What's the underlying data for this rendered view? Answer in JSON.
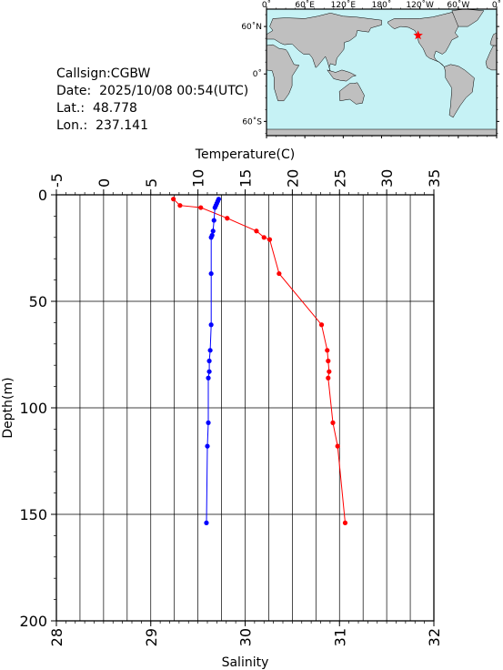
{
  "info": {
    "callsign_label": "Callsign:",
    "callsign": "CGBW",
    "date_label": "Date:",
    "date": "2025/10/08 00:54(UTC)",
    "lat_label": "Lat.:",
    "lat": "48.778",
    "lon_label": "Lon.:",
    "lon": "237.141"
  },
  "map": {
    "lon_ticks": [
      "0˚",
      "60˚E",
      "120˚E",
      "180˚",
      "120˚W",
      "60˚W",
      "0˚"
    ],
    "lat_ticks": [
      "60˚N",
      "0˚",
      "60˚S"
    ],
    "station_lon": 237.141,
    "station_lat": 48.778,
    "colors": {
      "ocean": "#c6f2f5",
      "land": "#bfbfbf",
      "marker": "#ff0000"
    }
  },
  "chart_data": {
    "type": "line",
    "title": "",
    "temperature_axis": {
      "label": "Temperature(C)",
      "range": [
        -5,
        35
      ],
      "ticks": [
        "-5",
        "0",
        "5",
        "10",
        "15",
        "20",
        "25",
        "30",
        "35"
      ]
    },
    "salinity_axis": {
      "label": "Salinity",
      "range": [
        28,
        32
      ],
      "ticks": [
        "28",
        "29",
        "30",
        "31",
        "32"
      ]
    },
    "depth_axis": {
      "label": "Depth(m)",
      "range": [
        0,
        200
      ],
      "ticks": [
        "0",
        "50",
        "100",
        "150",
        "200"
      ]
    },
    "grid": true,
    "series": [
      {
        "quantity": "temperature",
        "color": "#ff0000",
        "points": [
          {
            "depth": 2,
            "value": 7.4
          },
          {
            "depth": 5,
            "value": 8.1
          },
          {
            "depth": 6,
            "value": 10.3
          },
          {
            "depth": 11,
            "value": 13.1
          },
          {
            "depth": 17,
            "value": 16.2
          },
          {
            "depth": 20,
            "value": 17.0
          },
          {
            "depth": 21,
            "value": 17.6
          },
          {
            "depth": 37,
            "value": 18.6
          },
          {
            "depth": 61,
            "value": 23.1
          },
          {
            "depth": 73,
            "value": 23.7
          },
          {
            "depth": 78,
            "value": 23.8
          },
          {
            "depth": 83,
            "value": 23.9
          },
          {
            "depth": 86,
            "value": 23.8
          },
          {
            "depth": 107,
            "value": 24.3
          },
          {
            "depth": 118,
            "value": 24.8
          },
          {
            "depth": 154,
            "value": 25.6
          }
        ]
      },
      {
        "quantity": "salinity",
        "color": "#0000ff",
        "points": [
          {
            "depth": 2,
            "value": 29.72
          },
          {
            "depth": 3,
            "value": 29.71
          },
          {
            "depth": 4,
            "value": 29.7
          },
          {
            "depth": 5,
            "value": 29.69
          },
          {
            "depth": 6,
            "value": 29.68
          },
          {
            "depth": 12,
            "value": 29.67
          },
          {
            "depth": 17,
            "value": 29.66
          },
          {
            "depth": 19,
            "value": 29.65
          },
          {
            "depth": 20,
            "value": 29.64
          },
          {
            "depth": 37,
            "value": 29.64
          },
          {
            "depth": 61,
            "value": 29.64
          },
          {
            "depth": 73,
            "value": 29.63
          },
          {
            "depth": 78,
            "value": 29.62
          },
          {
            "depth": 83,
            "value": 29.62
          },
          {
            "depth": 86,
            "value": 29.61
          },
          {
            "depth": 107,
            "value": 29.61
          },
          {
            "depth": 118,
            "value": 29.6
          },
          {
            "depth": 154,
            "value": 29.59
          }
        ]
      }
    ]
  }
}
